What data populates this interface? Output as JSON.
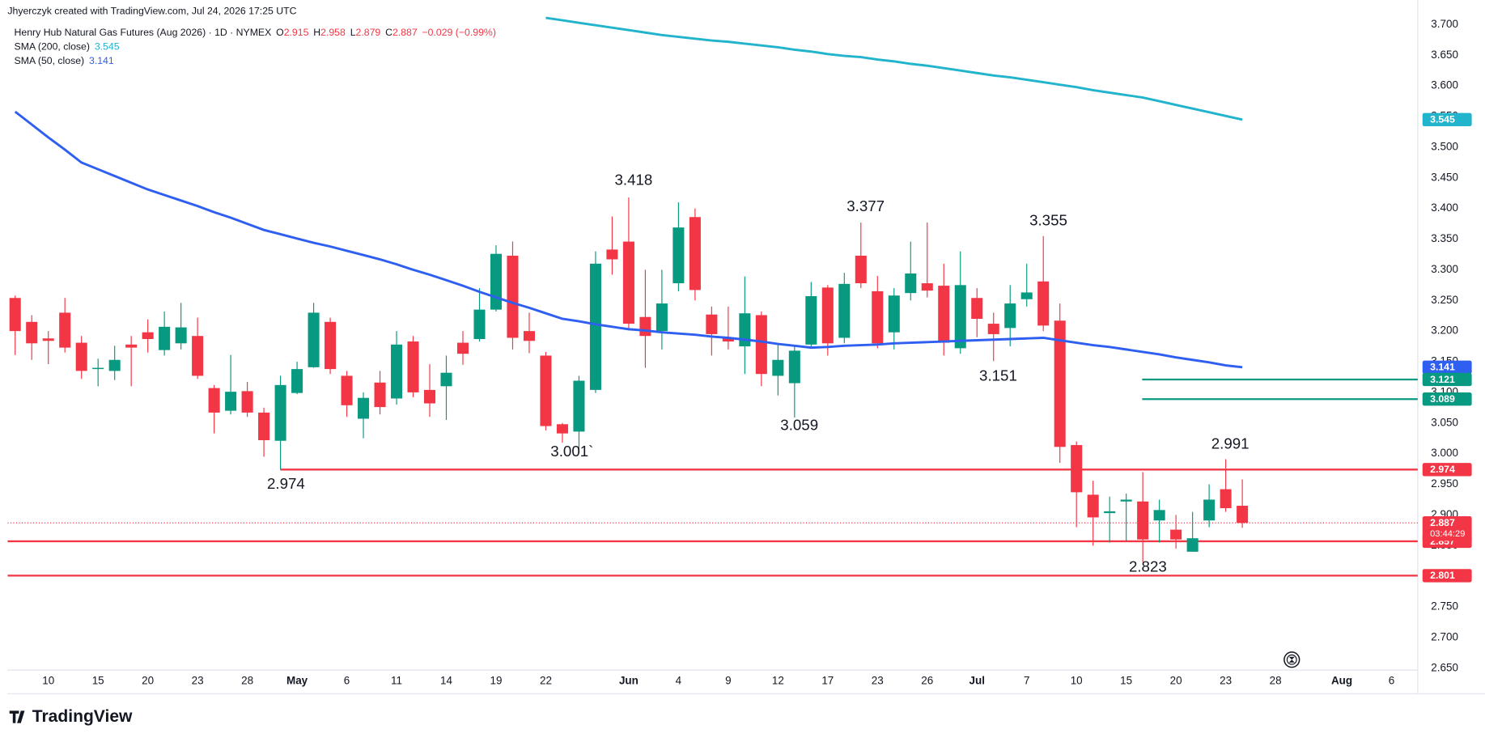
{
  "header": {
    "credit": "Jhyerczyk created with TradingView.com, Jul 24, 2026 17:25 UTC",
    "brand": "TradingView"
  },
  "legend": {
    "symbol": "Henry Hub Natural Gas Futures (Aug 2026) · 1D · NYMEX",
    "open_label": "O",
    "high_label": "H",
    "low_label": "L",
    "close_label": "C",
    "change": "−0.029 (−0.99%)",
    "countdown": "03:44:29"
  },
  "chart_data": {
    "type": "candlestick",
    "up_color": "#089981",
    "down_color": "#f23645",
    "categories": [
      null,
      null,
      "10",
      null,
      null,
      "15",
      null,
      null,
      "20",
      null,
      null,
      "23",
      null,
      null,
      "28",
      null,
      null,
      "May",
      null,
      null,
      "6",
      null,
      null,
      "11",
      null,
      null,
      "14",
      null,
      null,
      "19",
      null,
      null,
      "22",
      null,
      null,
      null,
      null,
      "Jun",
      null,
      null,
      "4",
      null,
      null,
      "9",
      null,
      null,
      "12",
      null,
      null,
      "17",
      null,
      null,
      "23",
      null,
      null,
      "26",
      null,
      null,
      "Jul",
      null,
      null,
      "7",
      null,
      null,
      "10",
      null,
      null,
      "15",
      null,
      null,
      "20",
      null,
      null,
      "23",
      null,
      null,
      "28",
      null,
      null,
      null,
      "Aug",
      null,
      null,
      "6",
      null
    ],
    "open": [
      3.254,
      3.215,
      3.188,
      3.23,
      3.181,
      3.138,
      3.135,
      3.178,
      3.198,
      3.169,
      3.18,
      3.192,
      3.107,
      3.07,
      3.102,
      3.067,
      3.021,
      3.099,
      3.141,
      3.215,
      3.127,
      3.057,
      3.116,
      3.09,
      3.183,
      3.104,
      3.11,
      3.181,
      3.187,
      3.235,
      3.323,
      3.2,
      3.16,
      3.048,
      3.036,
      3.104,
      3.333,
      3.346,
      3.223,
      3.2,
      3.278,
      3.386,
      3.227,
      3.189,
      3.175,
      3.226,
      3.127,
      3.115,
      3.178,
      3.271,
      3.189,
      3.323,
      3.265,
      3.198,
      3.262,
      3.278,
      3.274,
      3.172,
      3.254,
      3.212,
      3.205,
      3.252,
      3.281,
      3.217,
      3.014,
      2.933,
      2.903,
      2.922,
      2.922,
      2.891,
      2.876,
      2.84,
      2.891,
      2.942,
      2.915,
      null,
      null,
      null,
      null,
      null,
      null,
      null,
      null,
      null,
      null
    ],
    "high": [
      3.258,
      3.226,
      3.2,
      3.254,
      3.192,
      3.155,
      3.176,
      3.192,
      3.219,
      3.232,
      3.246,
      3.222,
      3.112,
      3.161,
      3.117,
      3.075,
      3.127,
      3.15,
      3.246,
      3.222,
      3.135,
      3.1,
      3.135,
      3.2,
      3.192,
      3.146,
      3.16,
      3.2,
      3.27,
      3.34,
      3.346,
      3.23,
      3.166,
      3.05,
      3.127,
      3.33,
      3.387,
      3.418,
      3.3,
      3.3,
      3.41,
      3.4,
      3.24,
      3.24,
      3.289,
      3.232,
      3.18,
      3.175,
      3.28,
      3.275,
      3.295,
      3.377,
      3.29,
      3.27,
      3.346,
      3.377,
      3.31,
      3.33,
      3.27,
      3.23,
      3.275,
      3.31,
      3.355,
      3.245,
      3.02,
      2.956,
      2.93,
      2.935,
      2.97,
      2.925,
      2.9,
      2.905,
      2.95,
      2.991,
      2.958,
      null,
      null,
      null,
      null,
      null,
      null,
      null,
      null,
      null,
      null
    ],
    "low": [
      3.161,
      3.153,
      3.146,
      3.165,
      3.122,
      3.11,
      3.12,
      3.11,
      3.165,
      3.16,
      3.17,
      3.122,
      3.033,
      3.064,
      3.06,
      2.995,
      2.974,
      3.097,
      3.14,
      3.13,
      3.06,
      3.025,
      3.064,
      3.08,
      3.092,
      3.06,
      3.055,
      3.145,
      3.183,
      3.232,
      3.17,
      3.164,
      3.038,
      3.018,
      3.001,
      3.099,
      3.292,
      3.205,
      3.14,
      3.17,
      3.265,
      3.25,
      3.16,
      3.17,
      3.13,
      3.11,
      3.095,
      3.059,
      3.175,
      3.16,
      3.18,
      3.27,
      3.172,
      3.17,
      3.25,
      3.255,
      3.16,
      3.163,
      3.19,
      3.151,
      3.175,
      3.24,
      3.2,
      2.985,
      2.88,
      2.85,
      2.855,
      2.857,
      2.823,
      2.855,
      2.845,
      2.84,
      2.88,
      2.905,
      2.879,
      null,
      null,
      null,
      null,
      null,
      null,
      null,
      null,
      null,
      null
    ],
    "close": [
      3.2,
      3.18,
      3.184,
      3.173,
      3.135,
      3.14,
      3.153,
      3.173,
      3.187,
      3.207,
      3.206,
      3.127,
      3.067,
      3.101,
      3.067,
      3.022,
      3.112,
      3.138,
      3.23,
      3.138,
      3.079,
      3.091,
      3.076,
      3.178,
      3.1,
      3.082,
      3.132,
      3.163,
      3.235,
      3.326,
      3.189,
      3.184,
      3.045,
      3.033,
      3.119,
      3.31,
      3.317,
      3.212,
      3.192,
      3.245,
      3.369,
      3.267,
      3.195,
      3.183,
      3.229,
      3.13,
      3.153,
      3.168,
      3.257,
      3.18,
      3.277,
      3.278,
      3.18,
      3.258,
      3.294,
      3.266,
      3.181,
      3.275,
      3.22,
      3.195,
      3.245,
      3.263,
      3.209,
      3.011,
      2.937,
      2.896,
      2.906,
      2.925,
      2.86,
      2.908,
      2.86,
      2.862,
      2.925,
      2.911,
      2.887,
      null,
      null,
      null,
      null,
      null,
      null,
      null,
      null,
      null,
      null
    ],
    "series": [
      {
        "name": "SMA (200, close)",
        "color": "#22b4cc",
        "values": [
          null,
          null,
          null,
          null,
          null,
          null,
          null,
          null,
          null,
          null,
          null,
          null,
          null,
          null,
          null,
          null,
          null,
          null,
          null,
          null,
          null,
          null,
          null,
          null,
          null,
          null,
          null,
          null,
          null,
          null,
          null,
          null,
          3.711,
          3.707,
          3.703,
          3.699,
          3.695,
          3.691,
          3.687,
          3.683,
          3.68,
          3.677,
          3.674,
          3.672,
          3.669,
          3.666,
          3.663,
          3.659,
          3.656,
          3.652,
          3.649,
          3.647,
          3.643,
          3.64,
          3.636,
          3.633,
          3.629,
          3.625,
          3.621,
          3.617,
          3.614,
          3.61,
          3.606,
          3.602,
          3.598,
          3.593,
          3.589,
          3.585,
          3.581,
          3.575,
          3.569,
          3.563,
          3.557,
          3.551,
          3.545,
          null,
          null,
          null,
          null,
          null,
          null,
          null,
          null,
          null,
          null
        ]
      },
      {
        "name": "SMA (50, close)",
        "color": "#2f5ff0",
        "values": [
          3.558,
          3.537,
          3.516,
          3.496,
          3.475,
          3.464,
          3.453,
          3.442,
          3.431,
          3.422,
          3.413,
          3.404,
          3.394,
          3.385,
          3.375,
          3.365,
          3.358,
          3.351,
          3.344,
          3.338,
          3.331,
          3.324,
          3.317,
          3.309,
          3.3,
          3.292,
          3.283,
          3.274,
          3.264,
          3.255,
          3.246,
          3.238,
          3.229,
          3.22,
          3.216,
          3.211,
          3.207,
          3.203,
          3.201,
          3.198,
          3.196,
          3.194,
          3.191,
          3.189,
          3.186,
          3.183,
          3.179,
          3.176,
          3.173,
          3.174,
          3.176,
          3.177,
          3.178,
          3.18,
          3.181,
          3.182,
          3.183,
          3.184,
          3.185,
          3.186,
          3.187,
          3.188,
          3.189,
          3.185,
          3.181,
          3.177,
          3.174,
          3.17,
          3.166,
          3.162,
          3.157,
          3.153,
          3.149,
          3.144,
          3.141,
          null,
          null,
          null,
          null,
          null,
          null,
          null,
          null,
          null,
          null
        ]
      }
    ],
    "levels": [
      {
        "value": 2.974,
        "color": "#f23645"
      },
      {
        "value": 2.857,
        "color": "#f23645"
      },
      {
        "value": 2.801,
        "color": "#f23645"
      },
      {
        "value": 3.121,
        "color": "#089981"
      },
      {
        "value": 3.089,
        "color": "#089981"
      }
    ],
    "annotations": [
      "3.418",
      "3.377",
      "3.355",
      "3.151",
      "3.059",
      "3.001`",
      "2.974",
      "2.991",
      "2.823"
    ],
    "ylim": [
      2.65,
      3.7
    ],
    "yticks": [
      {
        "value": 3.7,
        "label": "3.700"
      },
      {
        "value": 3.65,
        "label": "3.650"
      },
      {
        "value": 3.6,
        "label": "3.600"
      },
      {
        "value": 3.55,
        "label": "3.550"
      },
      {
        "value": 3.5,
        "label": "3.500"
      },
      {
        "value": 3.45,
        "label": "3.450"
      },
      {
        "value": 3.4,
        "label": "3.400"
      },
      {
        "value": 3.35,
        "label": "3.350"
      },
      {
        "value": 3.3,
        "label": "3.300"
      },
      {
        "value": 3.25,
        "label": "3.250"
      },
      {
        "value": 3.2,
        "label": "3.200"
      },
      {
        "value": 3.15,
        "label": "3.150"
      },
      {
        "value": 3.1,
        "label": "3.100"
      },
      {
        "value": 3.05,
        "label": "3.050"
      },
      {
        "value": 3,
        "label": "3.000"
      },
      {
        "value": 2.95,
        "label": "2.950"
      },
      {
        "value": 2.9,
        "label": "2.900"
      },
      {
        "value": 2.85,
        "label": "2.850"
      },
      {
        "value": 2.8,
        "label": "2.800"
      },
      {
        "value": 2.75,
        "label": "2.750"
      },
      {
        "value": 2.7,
        "label": "2.700"
      },
      {
        "value": 2.65,
        "label": "2.650"
      }
    ],
    "grid": false
  }
}
